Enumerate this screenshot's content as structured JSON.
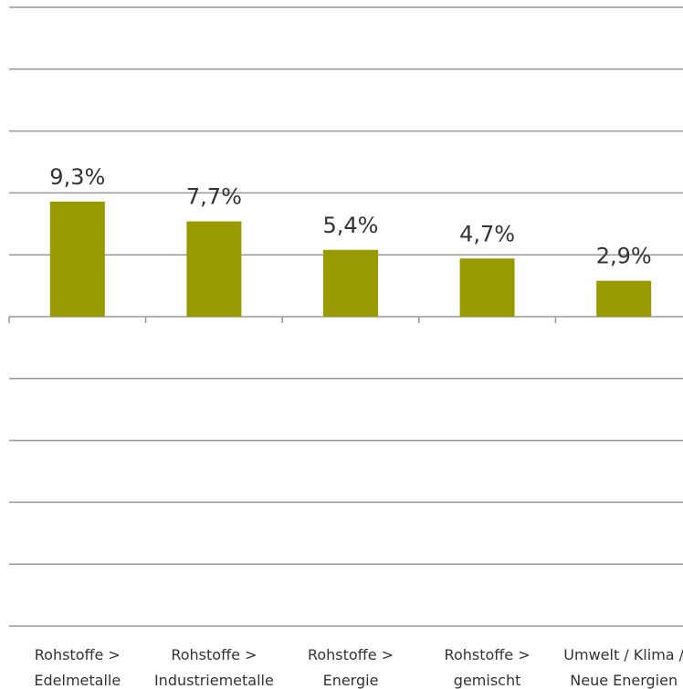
{
  "chart_data": {
    "type": "bar",
    "categories": [
      "Rohstoffe > Edelmetalle",
      "Rohstoffe > Industriemetalle",
      "Rohstoffe > Energie",
      "Rohstoffe > gemischt",
      "Umwelt / Klima / Neue Energien"
    ],
    "values": [
      9.3,
      7.7,
      5.4,
      4.7,
      2.9
    ],
    "value_labels": [
      "9,3%",
      "7,7%",
      "5,4%",
      "4,7%",
      "2,9%"
    ],
    "color": "#999900",
    "ylim": [
      -25,
      25
    ],
    "yticks": [
      -25,
      -20,
      -15,
      -10,
      -5,
      0,
      5,
      10,
      15,
      20,
      25
    ],
    "grid": true
  }
}
